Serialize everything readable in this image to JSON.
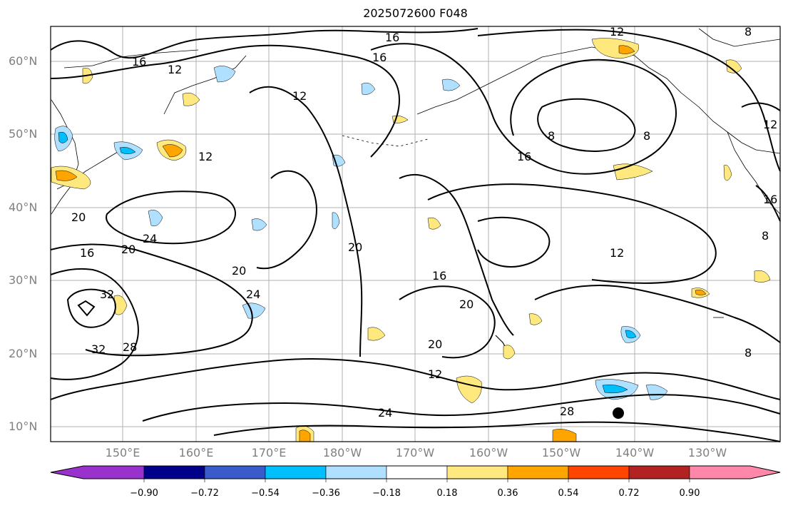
{
  "title": "2025072600 F048",
  "lat_labels": [
    "60°N",
    "50°N",
    "40°N",
    "30°N",
    "20°N",
    "10°N"
  ],
  "lon_labels": [
    "150°E",
    "160°E",
    "170°E",
    "180°W",
    "170°W",
    "160°W",
    "150°W",
    "140°W",
    "130°W"
  ],
  "colorbar": {
    "ticks": [
      "−0.90",
      "−0.72",
      "−0.54",
      "−0.36",
      "−0.18",
      "0.18",
      "0.36",
      "0.54",
      "0.72",
      "0.90"
    ],
    "colors": [
      "#9932CC",
      "#00008B",
      "#3A5BCB",
      "#00BFFF",
      "#B0E0FF",
      "#FFFFFF",
      "#FFE97F",
      "#FFA500",
      "#FF4500",
      "#B22222",
      "#FF88AA"
    ]
  },
  "contour_labels": [
    "16",
    "12",
    "16",
    "12",
    "12",
    "8",
    "16",
    "12",
    "12",
    "16",
    "16",
    "8",
    "8",
    "20",
    "24",
    "20",
    "16",
    "20",
    "24",
    "16",
    "20",
    "12",
    "20",
    "20",
    "32",
    "28",
    "32",
    "24",
    "28",
    "12",
    "8",
    "8"
  ]
}
